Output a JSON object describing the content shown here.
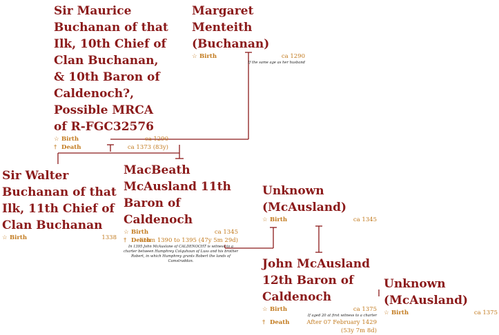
{
  "people": [
    {
      "id": "maurice",
      "name": "Sir Maurice Buchanan of that Ilk, 10th Chief of Clan Buchanan, & 10th Baron of Caldenoch?, Possible MRCA of R-FGC32576",
      "birth": {
        "label": "Birth",
        "value": "ca 1290"
      },
      "death": {
        "label": "Death",
        "value": "ca 1373 (83y)"
      }
    },
    {
      "id": "margaret",
      "name": "Margaret Menteith (Buchanan)",
      "birth": {
        "label": "Birth",
        "value": "ca 1290"
      },
      "note": "If the same age as her husband"
    },
    {
      "id": "walter",
      "name": "Sir Walter Buchanan of that Ilk, 11th Chief of Clan Buchanan",
      "birth": {
        "label": "Birth",
        "value": "1338"
      }
    },
    {
      "id": "macbeath",
      "name": "MacBeath McAusland 11th Baron of Caldenoch",
      "birth": {
        "label": "Birth",
        "value": "ca 1345"
      },
      "death": {
        "label": "Death",
        "value": "From 1390 to 1395 (47y 5m 29d)"
      },
      "note": "In 1395 John McAuslane of CALDENOCHT is witness to a charter between Humphrey Colquhoun of Luss and his brother Robert, in which Humphrey grants Robert the lands of Camstraddan."
    },
    {
      "id": "unknown1",
      "name": "Unknown (McAusland)",
      "birth": {
        "label": "Birth",
        "value": "ca 1345"
      }
    },
    {
      "id": "john",
      "name": "John McAusland 12th Baron of Caldenoch",
      "birth": {
        "label": "Birth",
        "value": "ca 1375"
      },
      "birth_note": "If aged 20 at first witness to a charter",
      "death": {
        "label": "Death",
        "value": "After 07 February 1429 (53y 7m 8d)"
      }
    },
    {
      "id": "unknown2",
      "name": "Unknown (McAusland)",
      "birth": {
        "label": "Birth",
        "value": "ca 1375"
      }
    }
  ],
  "icons": {
    "birth": "star-outline-icon",
    "death": "dagger-icon"
  }
}
